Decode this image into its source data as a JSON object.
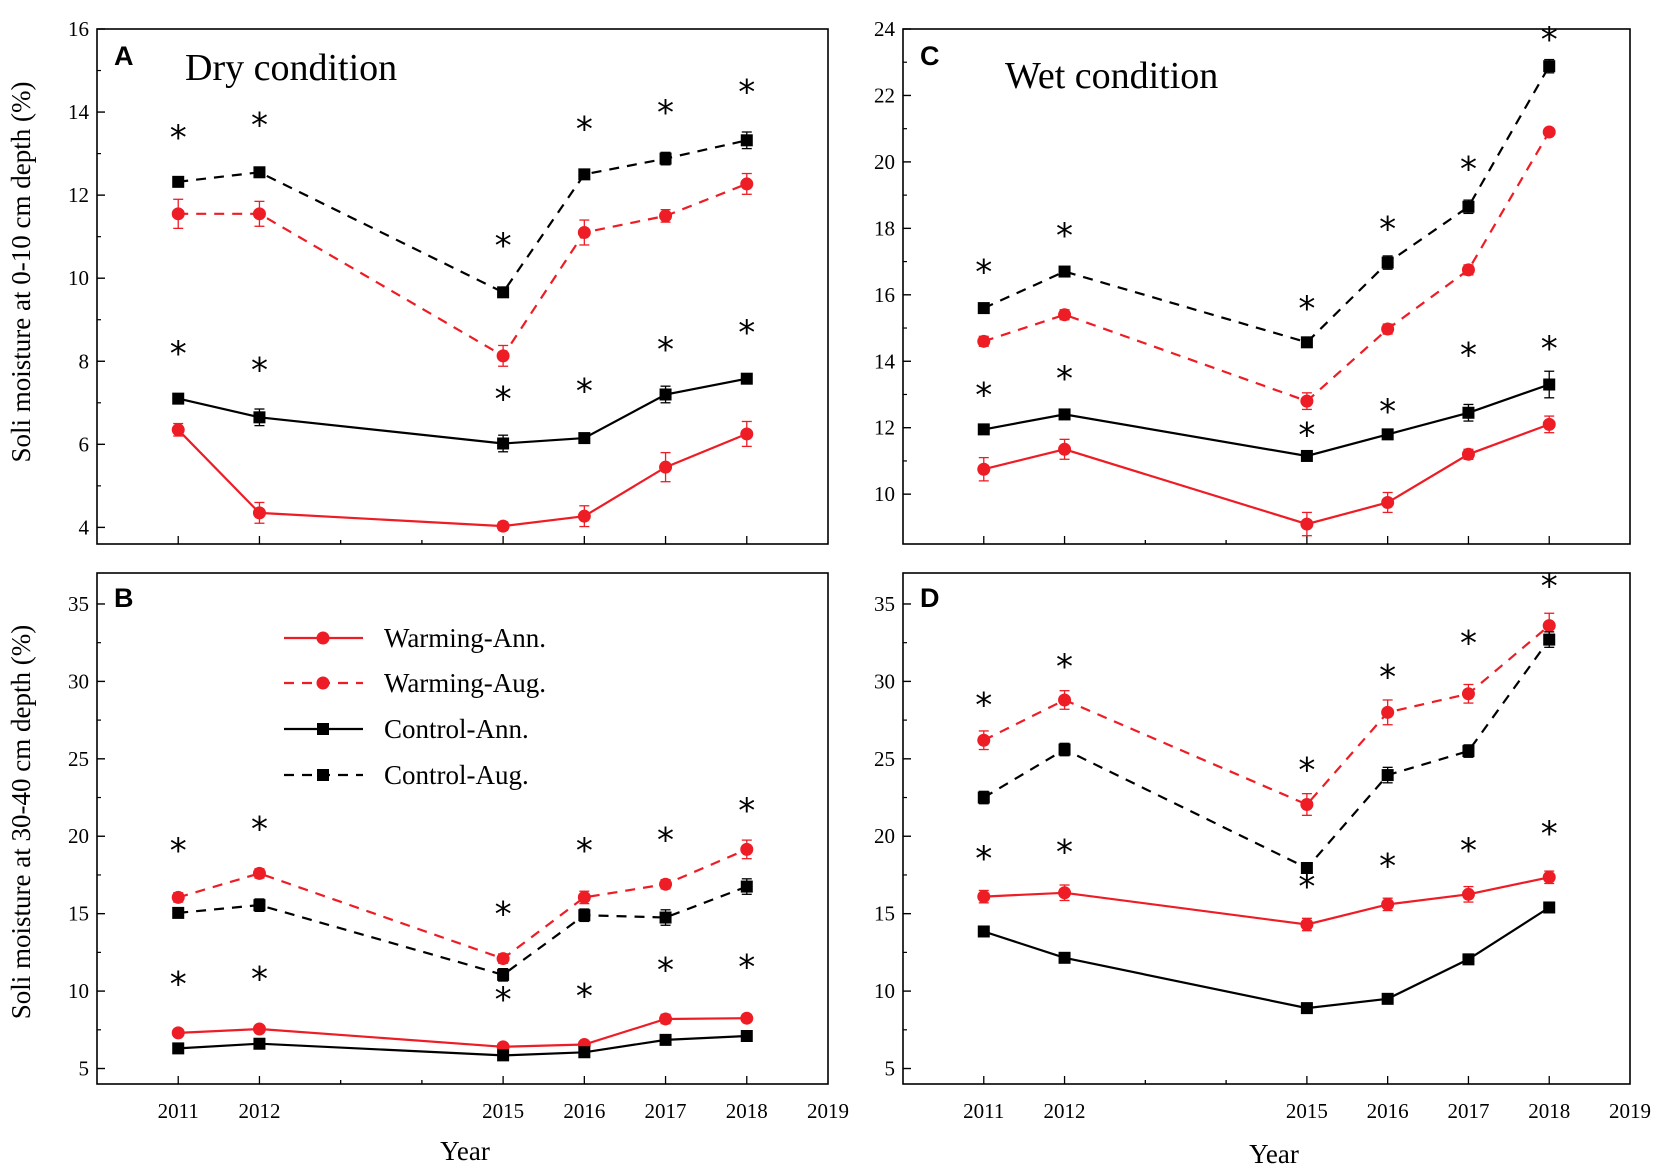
{
  "colors": {
    "warming": "#ee1c25",
    "control": "#000000"
  },
  "y_axis_label_top": "Soli moisture at 0-10 cm depth (%)",
  "y_axis_label_bottom": "Soli moisture at 30-40 cm depth (%)",
  "x_axis_label_left": "Year",
  "x_axis_label_right": "Year",
  "legend": {
    "entries": [
      {
        "label": "Warming-Ann.",
        "color": "#ee1c25",
        "dash": false,
        "marker": "circle"
      },
      {
        "label": "Warming-Aug.",
        "color": "#ee1c25",
        "dash": true,
        "marker": "circle"
      },
      {
        "label": "Control-Ann.",
        "color": "#000000",
        "dash": false,
        "marker": "square"
      },
      {
        "label": "Control-Aug.",
        "color": "#000000",
        "dash": true,
        "marker": "square"
      }
    ]
  },
  "chart_data": [
    {
      "panel": "A",
      "title": "Dry condition",
      "type": "line",
      "xlabel": "",
      "ylabel": "Soli moisture at 0-10 cm depth (%)",
      "x": [
        2011,
        2012,
        2015,
        2016,
        2017,
        2018
      ],
      "xlim": [
        2010,
        2019
      ],
      "xticks": [
        2011,
        2012,
        2015,
        2016,
        2017,
        2018,
        2019
      ],
      "ylim": [
        3.6,
        16
      ],
      "yticks": [
        4,
        6,
        8,
        10,
        12,
        14,
        16
      ],
      "show_xtick_labels": false,
      "series": [
        {
          "name": "Warming-Ann.",
          "values": [
            6.35,
            4.35,
            4.03,
            4.27,
            5.45,
            6.25
          ],
          "err": [
            0.15,
            0.25,
            0.1,
            0.25,
            0.35,
            0.3
          ]
        },
        {
          "name": "Warming-Aug.",
          "values": [
            11.55,
            11.55,
            8.13,
            11.1,
            11.5,
            12.27
          ],
          "err": [
            0.35,
            0.3,
            0.25,
            0.3,
            0.15,
            0.25
          ]
        },
        {
          "name": "Control-Ann.",
          "values": [
            7.1,
            6.65,
            6.02,
            6.15,
            7.2,
            7.58
          ],
          "err": [
            0.1,
            0.2,
            0.2,
            0.1,
            0.2,
            0.1
          ]
        },
        {
          "name": "Control-Aug.",
          "values": [
            12.32,
            12.55,
            9.66,
            12.5,
            12.88,
            13.32
          ],
          "err": [
            0.1,
            0.1,
            0.1,
            0.1,
            0.15,
            0.2
          ]
        }
      ],
      "significance": [
        {
          "x": 2011,
          "y": 13.4
        },
        {
          "x": 2012,
          "y": 13.7
        },
        {
          "x": 2015,
          "y": 10.8
        },
        {
          "x": 2016,
          "y": 13.6
        },
        {
          "x": 2017,
          "y": 14.0
        },
        {
          "x": 2018,
          "y": 14.5
        },
        {
          "x": 2011,
          "y": 8.2
        },
        {
          "x": 2012,
          "y": 7.8
        },
        {
          "x": 2015,
          "y": 7.1
        },
        {
          "x": 2016,
          "y": 7.3
        },
        {
          "x": 2017,
          "y": 8.3
        },
        {
          "x": 2018,
          "y": 8.7
        }
      ]
    },
    {
      "panel": "B",
      "title": "",
      "type": "line",
      "xlabel": "Year",
      "ylabel": "Soli moisture at 30-40 cm depth (%)",
      "x": [
        2011,
        2012,
        2015,
        2016,
        2017,
        2018
      ],
      "xlim": [
        2010,
        2019
      ],
      "xticks": [
        2011,
        2012,
        2015,
        2016,
        2017,
        2018,
        2019
      ],
      "ylim": [
        4,
        37
      ],
      "yticks": [
        5,
        10,
        15,
        20,
        25,
        30,
        35
      ],
      "show_xtick_labels": true,
      "series": [
        {
          "name": "Warming-Ann.",
          "values": [
            7.3,
            7.55,
            6.4,
            6.55,
            8.2,
            8.25
          ],
          "err": [
            0.2,
            0.2,
            0.2,
            0.2,
            0.3,
            0.2
          ]
        },
        {
          "name": "Warming-Aug.",
          "values": [
            16.05,
            17.6,
            12.1,
            16.05,
            16.9,
            19.15
          ],
          "err": [
            0.3,
            0.3,
            0.3,
            0.4,
            0.3,
            0.6
          ]
        },
        {
          "name": "Control-Ann.",
          "values": [
            6.3,
            6.6,
            5.85,
            6.05,
            6.85,
            7.1
          ],
          "err": [
            0.1,
            0.2,
            0.2,
            0.2,
            0.2,
            0.2
          ]
        },
        {
          "name": "Control-Aug.",
          "values": [
            15.05,
            15.55,
            11.05,
            14.9,
            14.75,
            16.75
          ],
          "err": [
            0.3,
            0.4,
            0.4,
            0.4,
            0.5,
            0.5
          ]
        }
      ],
      "significance": [
        {
          "x": 2011,
          "y": 19.1
        },
        {
          "x": 2012,
          "y": 20.5
        },
        {
          "x": 2015,
          "y": 15.0
        },
        {
          "x": 2016,
          "y": 19.1
        },
        {
          "x": 2017,
          "y": 19.8
        },
        {
          "x": 2018,
          "y": 21.7
        },
        {
          "x": 2011,
          "y": 10.5
        },
        {
          "x": 2012,
          "y": 10.8
        },
        {
          "x": 2015,
          "y": 9.5
        },
        {
          "x": 2016,
          "y": 9.7
        },
        {
          "x": 2017,
          "y": 11.4
        },
        {
          "x": 2018,
          "y": 11.6
        }
      ]
    },
    {
      "panel": "C",
      "title": "Wet condition",
      "type": "line",
      "xlabel": "",
      "ylabel": "",
      "x": [
        2011,
        2012,
        2015,
        2016,
        2017,
        2018
      ],
      "xlim": [
        2010,
        2019
      ],
      "xticks": [
        2011,
        2012,
        2015,
        2016,
        2017,
        2018,
        2019
      ],
      "ylim": [
        8.5,
        24
      ],
      "yticks": [
        10,
        12,
        14,
        16,
        18,
        20,
        22,
        24
      ],
      "show_xtick_labels": false,
      "series": [
        {
          "name": "Warming-Ann.",
          "values": [
            10.75,
            11.35,
            9.1,
            9.75,
            11.2,
            12.1
          ],
          "err": [
            0.35,
            0.3,
            0.35,
            0.3,
            0.15,
            0.25
          ]
        },
        {
          "name": "Warming-Aug.",
          "values": [
            14.6,
            15.4,
            12.8,
            14.97,
            16.75,
            20.9
          ],
          "err": [
            0.15,
            0.15,
            0.25,
            0.15,
            0.15,
            0.1
          ]
        },
        {
          "name": "Control-Ann.",
          "values": [
            11.95,
            12.4,
            11.15,
            11.8,
            12.45,
            13.3
          ],
          "err": [
            0.1,
            0.15,
            0.1,
            0.1,
            0.25,
            0.4
          ]
        },
        {
          "name": "Control-Aug.",
          "values": [
            15.6,
            16.7,
            14.57,
            16.97,
            18.65,
            22.88
          ],
          "err": [
            0.1,
            0.1,
            0.1,
            0.2,
            0.2,
            0.2
          ]
        }
      ],
      "significance": [
        {
          "x": 2011,
          "y": 16.7
        },
        {
          "x": 2012,
          "y": 17.8
        },
        {
          "x": 2015,
          "y": 15.6
        },
        {
          "x": 2016,
          "y": 18.0
        },
        {
          "x": 2017,
          "y": 19.8
        },
        {
          "x": 2018,
          "y": 23.7
        },
        {
          "x": 2011,
          "y": 13.0
        },
        {
          "x": 2012,
          "y": 13.5
        },
        {
          "x": 2015,
          "y": 11.8
        },
        {
          "x": 2016,
          "y": 12.5
        },
        {
          "x": 2017,
          "y": 14.2
        },
        {
          "x": 2018,
          "y": 14.4
        }
      ]
    },
    {
      "panel": "D",
      "title": "",
      "type": "line",
      "xlabel": "Year",
      "ylabel": "",
      "x": [
        2011,
        2012,
        2015,
        2016,
        2017,
        2018
      ],
      "xlim": [
        2010,
        2019
      ],
      "xticks": [
        2011,
        2012,
        2015,
        2016,
        2017,
        2018,
        2019
      ],
      "ylim": [
        4,
        37
      ],
      "yticks": [
        5,
        10,
        15,
        20,
        25,
        30,
        35
      ],
      "show_xtick_labels": true,
      "series": [
        {
          "name": "Warming-Ann.",
          "values": [
            16.1,
            16.35,
            14.3,
            15.6,
            16.25,
            17.35
          ],
          "err": [
            0.4,
            0.5,
            0.4,
            0.4,
            0.5,
            0.4
          ]
        },
        {
          "name": "Warming-Aug.",
          "values": [
            26.2,
            28.8,
            22.05,
            28.0,
            29.2,
            33.6
          ],
          "err": [
            0.6,
            0.6,
            0.7,
            0.8,
            0.6,
            0.8
          ]
        },
        {
          "name": "Control-Ann.",
          "values": [
            13.85,
            12.15,
            8.9,
            9.5,
            12.05,
            15.4
          ],
          "err": [
            0.2,
            0.2,
            0.2,
            0.2,
            0.2,
            0.3
          ]
        },
        {
          "name": "Control-Aug.",
          "values": [
            22.5,
            25.6,
            17.95,
            23.95,
            25.5,
            32.7
          ],
          "err": [
            0.4,
            0.4,
            0.3,
            0.5,
            0.4,
            0.5
          ]
        }
      ],
      "significance": [
        {
          "x": 2011,
          "y": 28.5
        },
        {
          "x": 2012,
          "y": 31.0
        },
        {
          "x": 2015,
          "y": 24.3
        },
        {
          "x": 2016,
          "y": 30.3
        },
        {
          "x": 2017,
          "y": 32.5
        },
        {
          "x": 2018,
          "y": 36.2
        },
        {
          "x": 2011,
          "y": 18.6
        },
        {
          "x": 2012,
          "y": 19.0
        },
        {
          "x": 2015,
          "y": 16.8
        },
        {
          "x": 2016,
          "y": 18.1
        },
        {
          "x": 2017,
          "y": 19.1
        },
        {
          "x": 2018,
          "y": 20.2
        }
      ]
    }
  ]
}
